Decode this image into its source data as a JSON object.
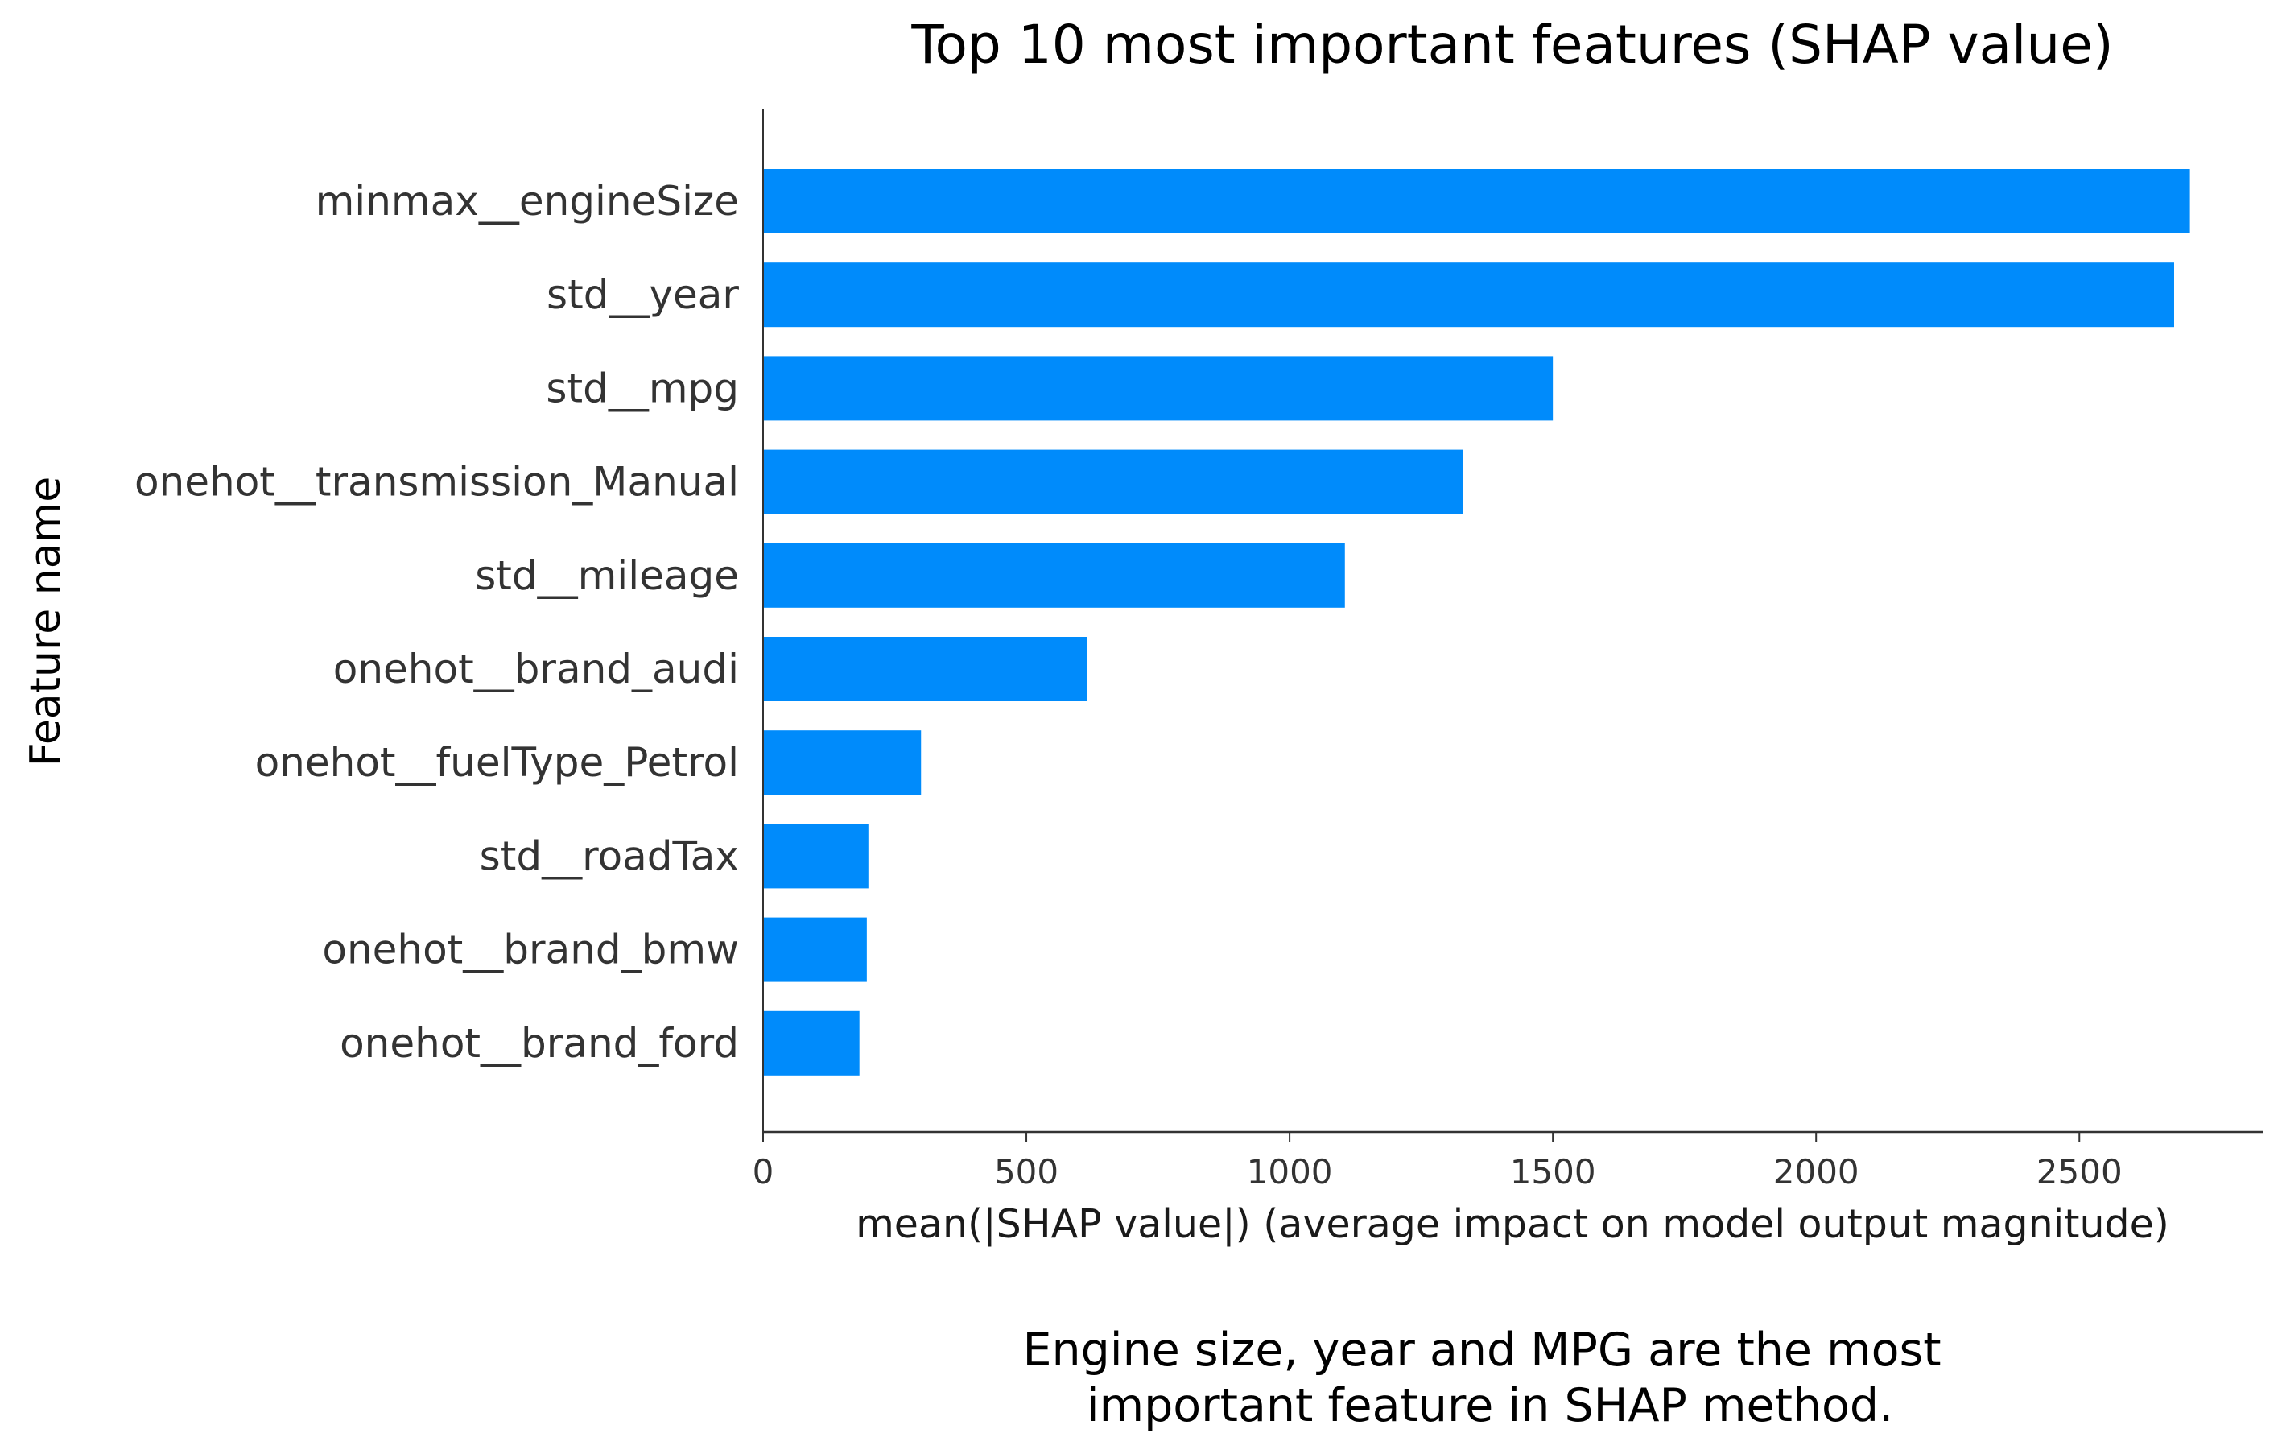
{
  "chart_data": {
    "type": "bar",
    "orientation": "horizontal",
    "title": "Top 10 most important features (SHAP value)",
    "xlabel": "mean(|SHAP value|) (average impact on model output magnitude)",
    "ylabel": "Feature name",
    "categories": [
      "minmax__engineSize",
      "std__year",
      "std__mpg",
      "onehot__transmission_Manual",
      "std__mileage",
      "onehot__brand_audi",
      "onehot__fuelType_Petrol",
      "std__roadTax",
      "onehot__brand_bmw",
      "onehot__brand_ford"
    ],
    "values": [
      2710,
      2680,
      1500,
      1330,
      1105,
      615,
      300,
      200,
      197,
      183
    ],
    "xlim": [
      0,
      2850
    ],
    "xticks": [
      0,
      500,
      1000,
      1500,
      2000,
      2500
    ],
    "xtick_labels": [
      "0",
      "500",
      "1000",
      "1500",
      "2000",
      "2500"
    ],
    "grid": false,
    "bar_color": "#008bfb"
  },
  "caption": {
    "line1": "Engine size, year and MPG are the most",
    "line2": "important feature in SHAP method."
  }
}
